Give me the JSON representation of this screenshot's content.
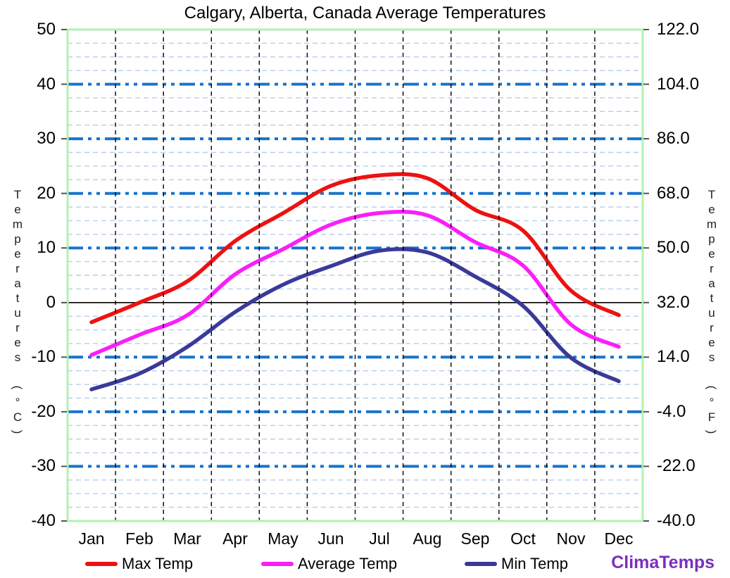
{
  "title": "Calgary, Alberta, Canada Average Temperatures",
  "axes": {
    "left_label": "Temperatures (°C)",
    "right_label": "Temperatures (°F)",
    "celsius_ticks": [
      "50",
      "40",
      "30",
      "20",
      "10",
      "0",
      "-10",
      "-20",
      "-30",
      "-40"
    ],
    "fahrenheit_ticks": [
      "122.0",
      "104.0",
      "86.0",
      "68.0",
      "50.0",
      "32.0",
      "14.0",
      "-4.0",
      "-22.0",
      "-40.0"
    ]
  },
  "chart_data": {
    "type": "line",
    "title": "Calgary, Alberta, Canada Average Temperatures",
    "categories": [
      "Jan",
      "Feb",
      "Mar",
      "Apr",
      "May",
      "Jun",
      "Jul",
      "Aug",
      "Sep",
      "Oct",
      "Nov",
      "Dec"
    ],
    "series": [
      {
        "name": "Max Temp",
        "color": "#EE1111",
        "values": [
          -3.6,
          0.0,
          3.9,
          11.3,
          16.4,
          21.4,
          23.3,
          22.8,
          17.0,
          13.2,
          2.2,
          -2.3
        ]
      },
      {
        "name": "Average Temp",
        "color": "#FA1EFA",
        "values": [
          -9.6,
          -5.9,
          -2.3,
          5.2,
          9.8,
          14.3,
          16.4,
          16.0,
          11.1,
          6.8,
          -4.0,
          -8.1
        ]
      },
      {
        "name": "Min Temp",
        "color": "#3A3A99",
        "values": [
          -15.9,
          -13.0,
          -8.1,
          -1.7,
          3.3,
          6.7,
          9.5,
          9.2,
          4.8,
          -0.6,
          -10.1,
          -14.4
        ]
      }
    ],
    "ylabel_left": "Temperatures (°C)",
    "ylabel_right": "Temperatures (°F)",
    "ylim_celsius": [
      -40,
      50
    ],
    "ylim_fahrenheit": [
      -40,
      122
    ],
    "y_major_step_c": 10,
    "y_minor_step_c": 2.5,
    "grid": true,
    "legend_position": "bottom"
  },
  "branding": {
    "logo_text": "ClimaTemps",
    "color": "#7B2FBE"
  },
  "colors": {
    "major_gridline": "#1874CD",
    "minor_gridline": "#B7CEE9",
    "month_gridline": "#000000",
    "zero_line": "#000000",
    "plot_border": "#B2F2B2",
    "tick_mark": "#555555"
  }
}
